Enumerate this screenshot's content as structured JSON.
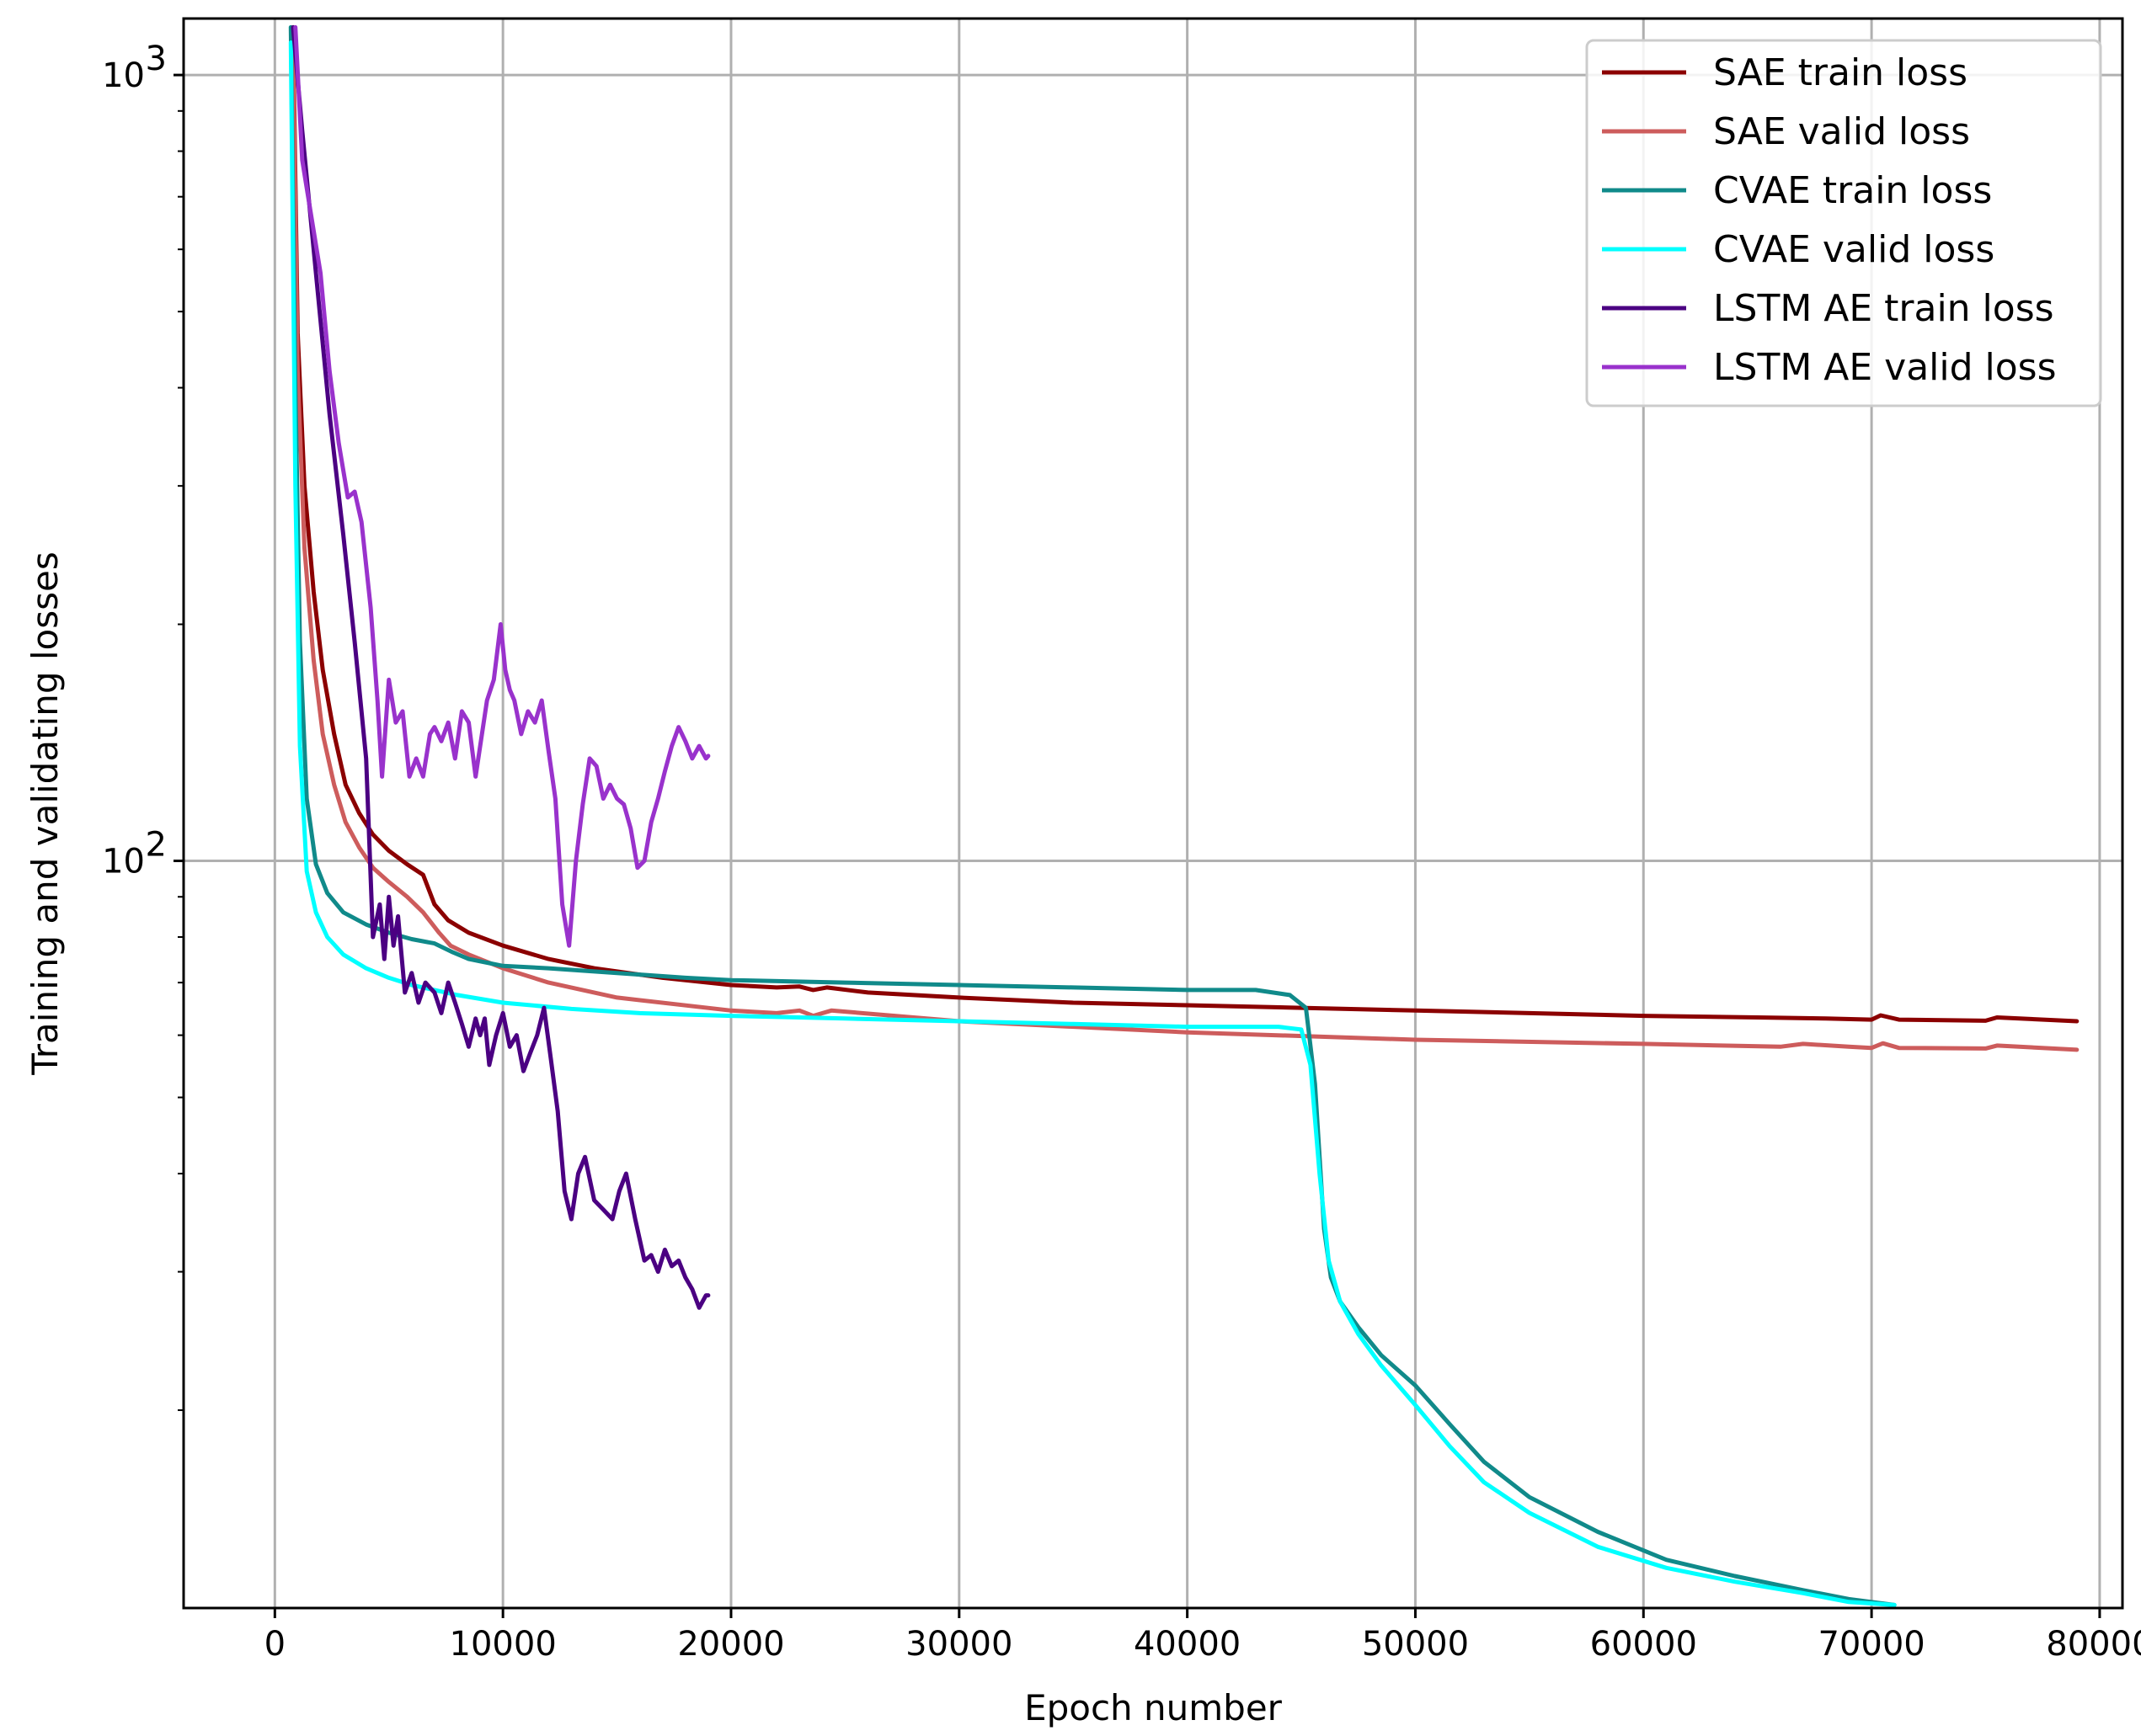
{
  "chart_data": {
    "type": "line",
    "title": "",
    "xlabel": "Epoch number",
    "ylabel": "Training and validating losses",
    "xlim": [
      -4000,
      81000
    ],
    "ylim": [
      11.2,
      1180
    ],
    "yscale": "log",
    "grid": true,
    "legend_position": "top-right",
    "x_ticks": [
      0,
      10000,
      20000,
      30000,
      40000,
      50000,
      60000,
      70000,
      80000
    ],
    "x_tick_labels": [
      "0",
      "10000",
      "20000",
      "30000",
      "40000",
      "50000",
      "60000",
      "70000",
      "80000"
    ],
    "y_major_ticks": [
      100,
      1000
    ],
    "y_major_tick_base": "10",
    "y_major_tick_exponents": [
      "2",
      "3"
    ],
    "y_minor_ticks": [
      20,
      30,
      40,
      50,
      60,
      70,
      80,
      90,
      200,
      300,
      400,
      500,
      600,
      700,
      800,
      900
    ],
    "series": [
      {
        "name": "SAE train loss",
        "color": "#8b0000",
        "x": [
          800,
          1000,
          1300,
          1700,
          2100,
          2600,
          3100,
          3700,
          4300,
          5000,
          5800,
          6500,
          7000,
          7600,
          8500,
          10000,
          12000,
          14000,
          17000,
          20000,
          22000,
          23000,
          23600,
          24200,
          26000,
          30000,
          35000,
          40000,
          45000,
          50000,
          55000,
          60000,
          65000,
          68000,
          70000,
          70400,
          71200,
          75000,
          75500,
          79000
        ],
        "values": [
          1150,
          470,
          300,
          220,
          175,
          145,
          125,
          115,
          108,
          103,
          99,
          96,
          88,
          84,
          81,
          78,
          75,
          73,
          71,
          69.5,
          69,
          69.2,
          68.5,
          69,
          68,
          67,
          66,
          65.5,
          65,
          64.5,
          64,
          63.5,
          63.2,
          63,
          62.8,
          63.6,
          62.8,
          62.6,
          63.2,
          62.5
        ]
      },
      {
        "name": "SAE valid loss",
        "color": "#cd5c5c",
        "x": [
          800,
          1000,
          1300,
          1700,
          2100,
          2600,
          3100,
          3700,
          4300,
          5000,
          5800,
          6500,
          7200,
          7700,
          8500,
          10000,
          12000,
          15000,
          20000,
          22000,
          23000,
          23600,
          24400,
          30000,
          40000,
          50000,
          60000,
          66000,
          67000,
          69000,
          70000,
          70500,
          71200,
          75000,
          75500,
          79000
        ],
        "values": [
          1100,
          420,
          250,
          180,
          145,
          125,
          112,
          104,
          98,
          94,
          90,
          86,
          81,
          78,
          76,
          73,
          70,
          67,
          64.5,
          64,
          64.5,
          63.5,
          64.5,
          62.5,
          60.5,
          59.2,
          58.5,
          58,
          58.5,
          58,
          57.8,
          58.6,
          57.8,
          57.7,
          58.2,
          57.5
        ]
      },
      {
        "name": "CVAE train loss",
        "color": "#108a8a",
        "x": [
          700,
          900,
          1100,
          1400,
          1800,
          2300,
          3000,
          4000,
          5000,
          6000,
          7000,
          7800,
          8500,
          10000,
          12000,
          15000,
          18000,
          20000,
          25000,
          30000,
          35000,
          40000,
          43000,
          44500,
          45200,
          45600,
          46000,
          46300,
          46700,
          47500,
          48500,
          50000,
          51500,
          53000,
          55000,
          58000,
          61000,
          64000,
          67000,
          69000,
          71000
        ],
        "values": [
          1150,
          400,
          190,
          120,
          99,
          91,
          86,
          83,
          81,
          79.5,
          78.5,
          76.5,
          75,
          73.5,
          73,
          72,
          71,
          70.5,
          70,
          69.5,
          69,
          68.5,
          68.5,
          67.5,
          65,
          52,
          34,
          29.5,
          27.5,
          25.5,
          23.5,
          21.5,
          19.2,
          17.2,
          15.5,
          14,
          12.9,
          12.3,
          11.8,
          11.5,
          11.3
        ]
      },
      {
        "name": "CVAE valid loss",
        "color": "#00ffff",
        "x": [
          700,
          900,
          1100,
          1400,
          1800,
          2300,
          3000,
          4000,
          5000,
          6000,
          8000,
          10000,
          13000,
          16000,
          20000,
          25000,
          30000,
          35000,
          40000,
          44000,
          45000,
          45400,
          45800,
          46200,
          46700,
          47500,
          48500,
          50000,
          51500,
          53000,
          55000,
          58000,
          61000,
          64000,
          67000,
          69000,
          71000
        ],
        "values": [
          1100,
          300,
          140,
          97,
          86,
          80,
          76,
          73,
          71,
          69.5,
          67.5,
          66,
          64.8,
          64,
          63.5,
          63,
          62.5,
          62,
          61.5,
          61.5,
          61,
          55,
          40,
          31,
          27.5,
          25,
          22.8,
          20.3,
          18,
          16.2,
          14.8,
          13.4,
          12.6,
          12.1,
          11.7,
          11.4,
          11.3
        ]
      },
      {
        "name": "LSTM AE train loss",
        "color": "#4b0082",
        "x": [
          800,
          1200,
          1800,
          2400,
          3000,
          3500,
          4000,
          4300,
          4600,
          4800,
          5000,
          5200,
          5400,
          5700,
          6000,
          6300,
          6600,
          7000,
          7300,
          7600,
          7900,
          8200,
          8500,
          8800,
          9000,
          9200,
          9400,
          9700,
          10000,
          10300,
          10600,
          10900,
          11200,
          11500,
          11800,
          12100,
          12400,
          12700,
          13000,
          13300,
          13600,
          14000,
          14400,
          14800,
          15100,
          15400,
          15800,
          16200,
          16500,
          16800,
          17100,
          17400,
          17700,
          18000,
          18300,
          18600,
          18900,
          19000
        ],
        "values": [
          1150,
          850,
          560,
          370,
          260,
          190,
          135,
          80,
          88,
          75,
          90,
          78,
          85,
          68,
          72,
          66,
          70,
          68,
          64,
          70,
          66,
          62,
          58,
          63,
          60,
          63,
          55,
          60,
          64,
          58,
          60,
          54,
          57,
          60,
          65,
          56,
          48,
          38,
          35,
          40,
          42,
          37,
          36,
          35,
          38,
          40,
          35,
          31,
          31.5,
          30,
          32,
          30.5,
          31,
          29.5,
          28.5,
          27,
          28,
          28
        ]
      },
      {
        "name": "LSTM AE valid loss",
        "color": "#9932cc",
        "x": [
          900,
          1200,
          1600,
          2000,
          2400,
          2800,
          3200,
          3500,
          3800,
          4200,
          4500,
          4700,
          5000,
          5300,
          5600,
          5900,
          6200,
          6500,
          6800,
          7000,
          7300,
          7600,
          7900,
          8200,
          8500,
          8800,
          9000,
          9300,
          9600,
          9900,
          10100,
          10300,
          10500,
          10800,
          11100,
          11400,
          11700,
          12000,
          12300,
          12600,
          12900,
          13200,
          13500,
          13800,
          14100,
          14400,
          14700,
          15000,
          15300,
          15600,
          15900,
          16200,
          16500,
          16800,
          17100,
          17400,
          17700,
          18000,
          18300,
          18600,
          18900,
          19000
        ],
        "values": [
          1150,
          780,
          660,
          560,
          420,
          340,
          290,
          295,
          270,
          210,
          160,
          128,
          170,
          150,
          155,
          128,
          135,
          128,
          145,
          148,
          142,
          150,
          135,
          155,
          150,
          128,
          140,
          160,
          170,
          200,
          175,
          165,
          160,
          145,
          155,
          150,
          160,
          138,
          120,
          88,
          78,
          100,
          118,
          135,
          132,
          120,
          125,
          120,
          118,
          110,
          98,
          100,
          112,
          120,
          130,
          140,
          148,
          142,
          135,
          140,
          135,
          136
        ]
      }
    ]
  }
}
